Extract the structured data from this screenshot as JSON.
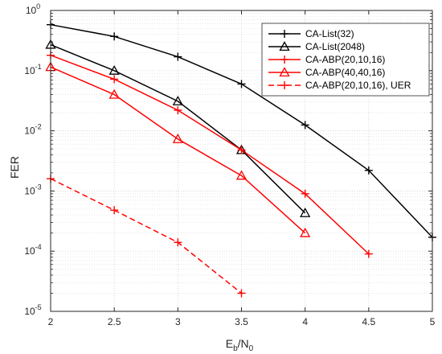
{
  "chart_data": {
    "type": "line",
    "title": "",
    "xlabel": "E_b/N_0",
    "xlabel_parts": {
      "main": "E",
      "sub1": "b",
      "sep": "/N",
      "sub2": "0"
    },
    "ylabel": "FER",
    "xscale": "linear",
    "yscale": "log",
    "xlim": [
      2,
      5
    ],
    "ylim": [
      1e-05,
      1
    ],
    "grid": true,
    "legend_position": "top-right",
    "xticks": [
      2,
      2.5,
      3,
      3.5,
      4,
      4.5,
      5
    ],
    "xtick_labels": [
      "2",
      "2.5",
      "3",
      "3.5",
      "4",
      "4.5",
      "5"
    ],
    "yticks": [
      {
        "value": 1e-05,
        "base": "10",
        "exp": "-5"
      },
      {
        "value": 0.0001,
        "base": "10",
        "exp": "-4"
      },
      {
        "value": 0.001,
        "base": "10",
        "exp": "-3"
      },
      {
        "value": 0.01,
        "base": "10",
        "exp": "-2"
      },
      {
        "value": 0.1,
        "base": "10",
        "exp": "-1"
      },
      {
        "value": 1,
        "base": "10",
        "exp": "0"
      }
    ],
    "series": [
      {
        "name": "CA-List(32)",
        "color": "#000000",
        "marker": "plus",
        "dashed": false,
        "x": [
          2,
          2.5,
          3,
          3.5,
          4,
          4.5,
          5
        ],
        "y": [
          0.58,
          0.37,
          0.17,
          0.06,
          0.0125,
          0.0022,
          0.00017
        ]
      },
      {
        "name": "CA-List(2048)",
        "color": "#000000",
        "marker": "triangle",
        "dashed": false,
        "x": [
          2,
          2.5,
          3,
          3.5,
          4
        ],
        "y": [
          0.27,
          0.1,
          0.031,
          0.0048,
          0.00043
        ]
      },
      {
        "name": "CA-ABP(20,10,16)",
        "color": "#ff0000",
        "marker": "plus",
        "dashed": false,
        "x": [
          2,
          2.5,
          3,
          3.5,
          4,
          4.5
        ],
        "y": [
          0.18,
          0.072,
          0.022,
          0.0048,
          0.0009,
          9e-05
        ]
      },
      {
        "name": "CA-ABP(40,40,16)",
        "color": "#ff0000",
        "marker": "triangle",
        "dashed": false,
        "x": [
          2,
          2.5,
          3,
          3.5,
          4
        ],
        "y": [
          0.115,
          0.04,
          0.0073,
          0.0018,
          0.0002
        ]
      },
      {
        "name": "CA-ABP(20,10,16), UER",
        "color": "#ff0000",
        "marker": "plus",
        "dashed": true,
        "x": [
          2,
          2.5,
          3,
          3.5
        ],
        "y": [
          0.0016,
          0.00048,
          0.00014,
          2e-05
        ]
      }
    ]
  }
}
